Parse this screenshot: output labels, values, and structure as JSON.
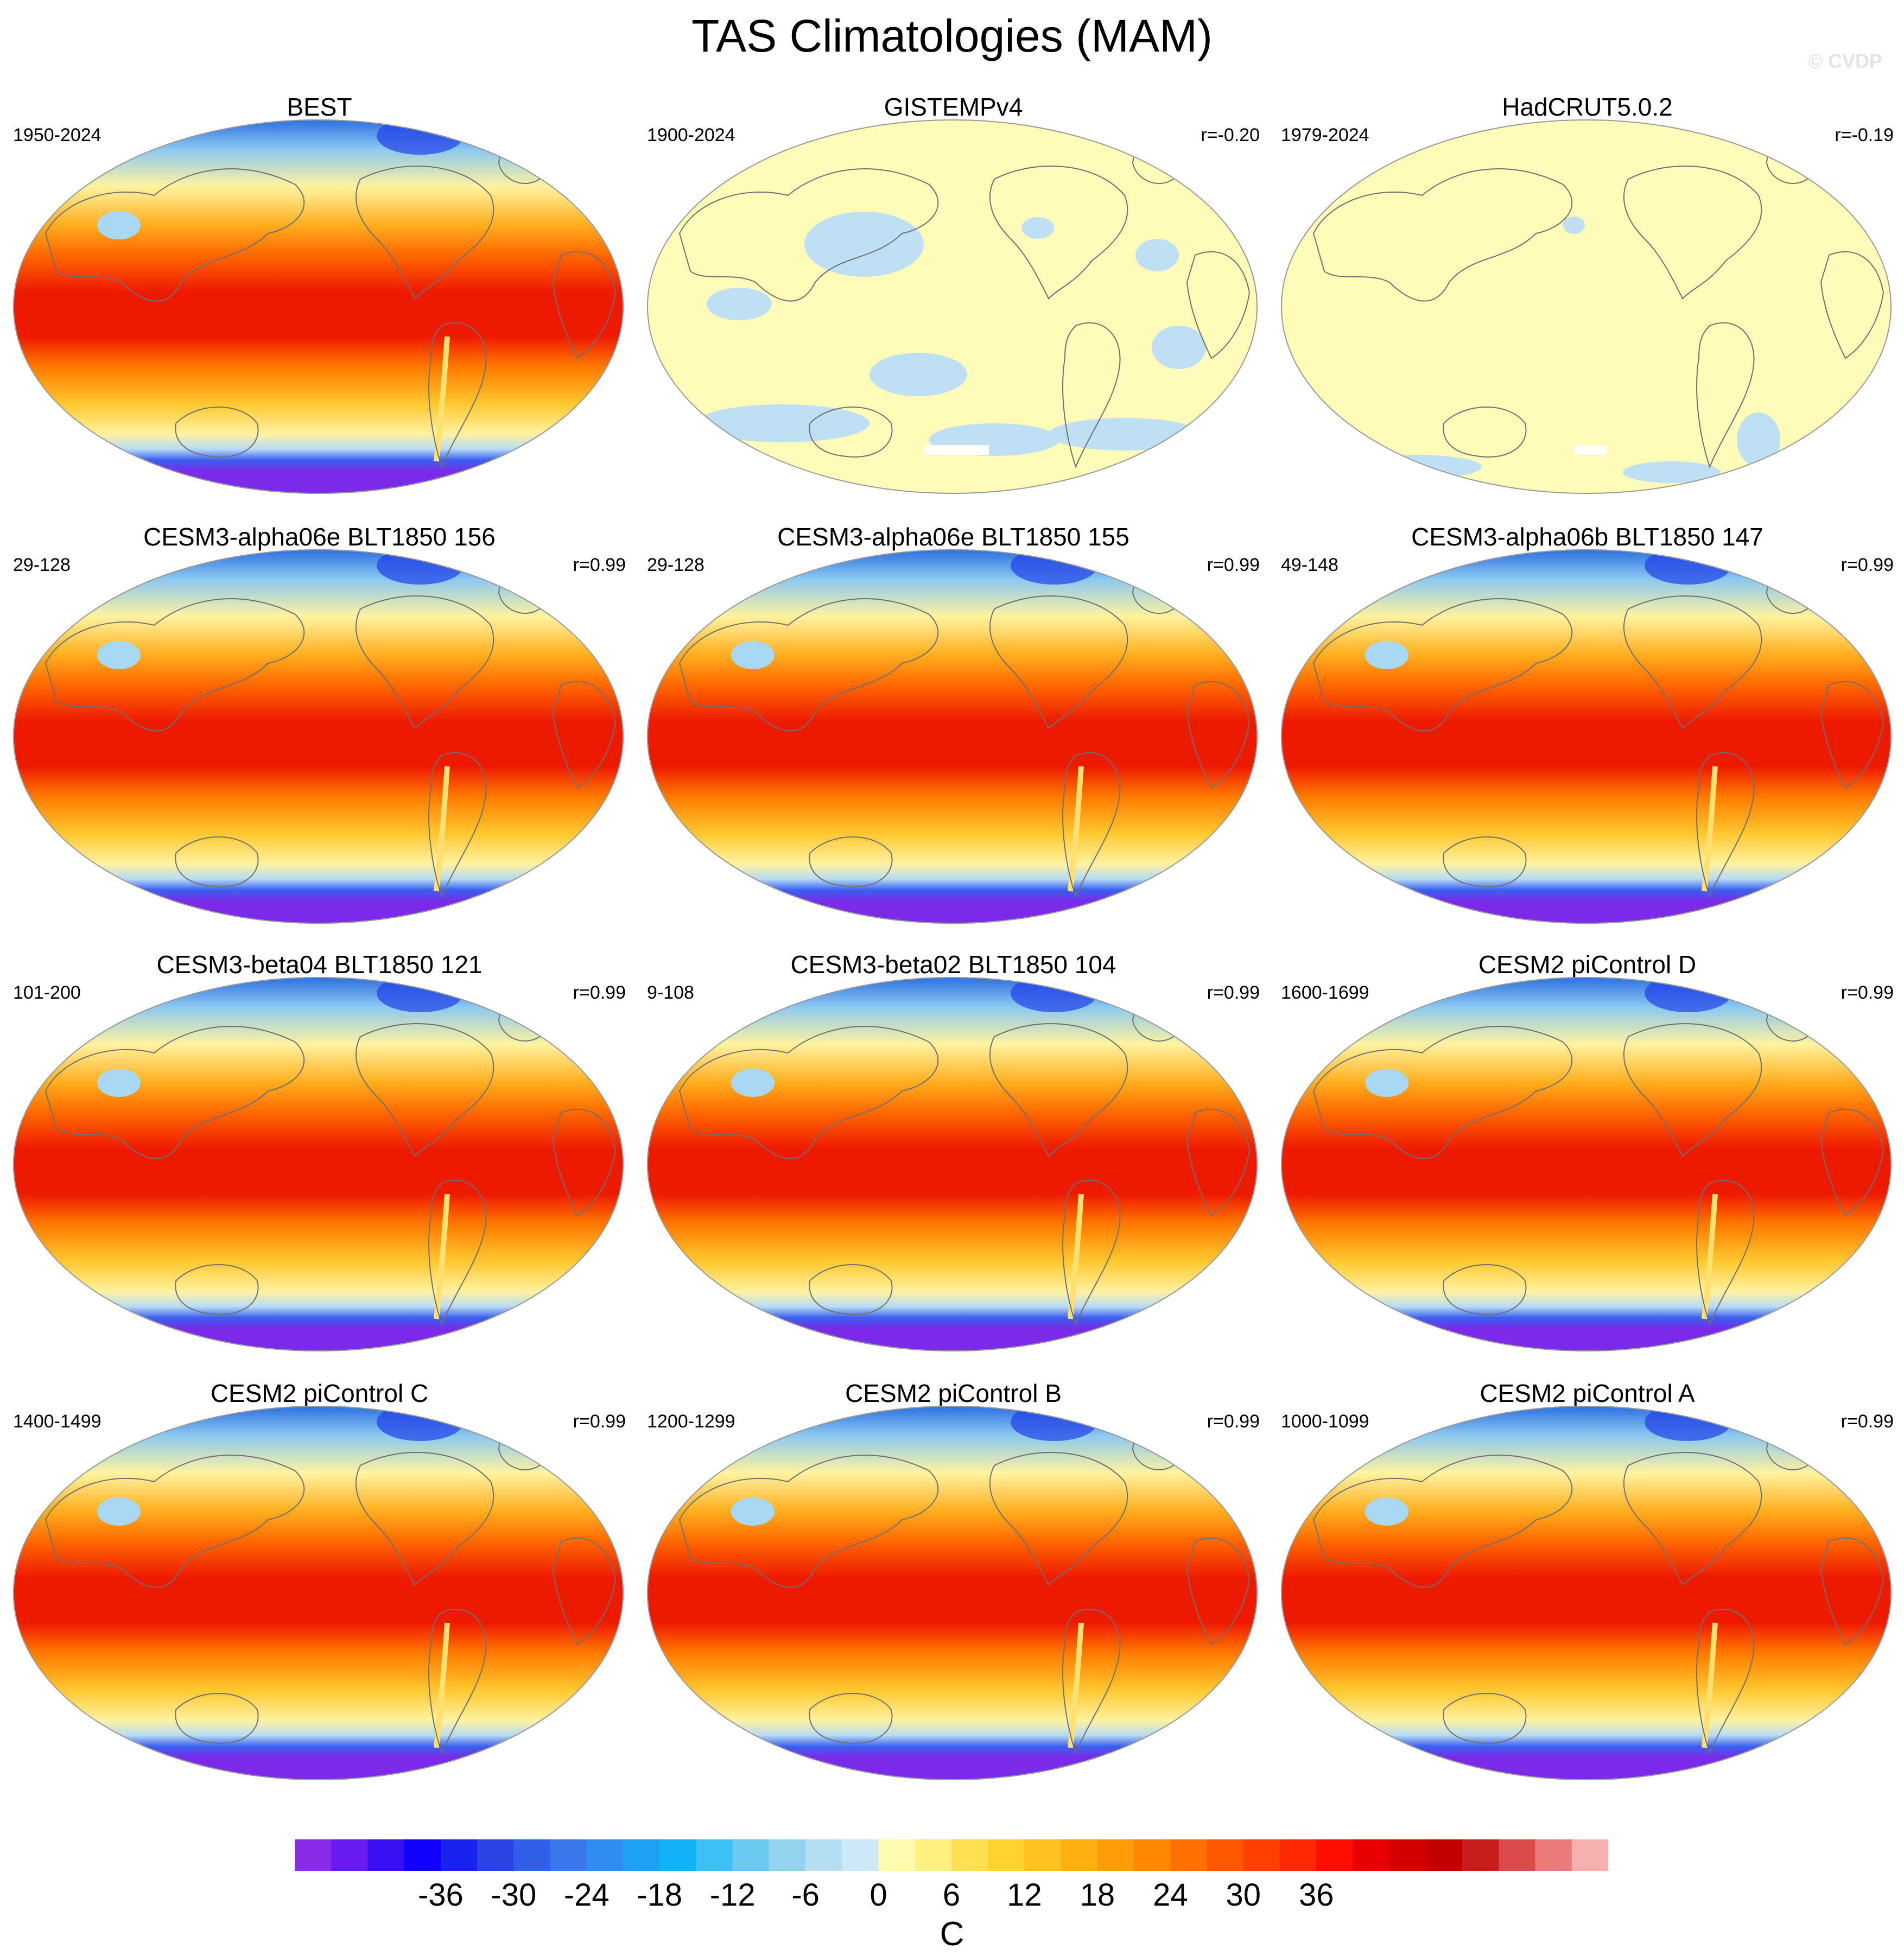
{
  "title": "TAS Climatologies (MAM)",
  "watermark": "© CVDP",
  "panels": [
    {
      "title": "BEST",
      "period": "1950-2024",
      "corr": "",
      "style": "temp"
    },
    {
      "title": "GISTEMPv4",
      "period": "1900-2024",
      "corr": "r=-0.20",
      "style": "anom"
    },
    {
      "title": "HadCRUT5.0.2",
      "period": "1979-2024",
      "corr": "r=-0.19",
      "style": "anom2"
    },
    {
      "title": "CESM3-alpha06e BLT1850 156",
      "period": "29-128",
      "corr": "r=0.99",
      "style": "temp"
    },
    {
      "title": "CESM3-alpha06e BLT1850 155",
      "period": "29-128",
      "corr": "r=0.99",
      "style": "temp"
    },
    {
      "title": "CESM3-alpha06b BLT1850 147",
      "period": "49-148",
      "corr": "r=0.99",
      "style": "temp"
    },
    {
      "title": "CESM3-beta04 BLT1850 121",
      "period": "101-200",
      "corr": "r=0.99",
      "style": "temp"
    },
    {
      "title": "CESM3-beta02 BLT1850 104",
      "period": "9-108",
      "corr": "r=0.99",
      "style": "temp"
    },
    {
      "title": "CESM2 piControl D",
      "period": "1600-1699",
      "corr": "r=0.99",
      "style": "temp"
    },
    {
      "title": "CESM2 piControl C",
      "period": "1400-1499",
      "corr": "r=0.99",
      "style": "temp"
    },
    {
      "title": "CESM2 piControl B",
      "period": "1200-1299",
      "corr": "r=0.99",
      "style": "temp"
    },
    {
      "title": "CESM2 piControl A",
      "period": "1000-1099",
      "corr": "r=0.99",
      "style": "temp"
    }
  ],
  "colorbar": {
    "colors": [
      "#8a2be8",
      "#6a1cf0",
      "#3a10f5",
      "#1200ff",
      "#1a22f0",
      "#2a44e6",
      "#3060e8",
      "#3a78ee",
      "#2f8cf0",
      "#1ea0f5",
      "#12b2f8",
      "#3cc0f5",
      "#6ccaf0",
      "#94d4ee",
      "#b4def2",
      "#cde8f6",
      "#fffbb0",
      "#fff080",
      "#ffe050",
      "#ffd230",
      "#ffc220",
      "#ffb010",
      "#ff9c08",
      "#ff8800",
      "#ff7000",
      "#ff5800",
      "#ff4000",
      "#ff2800",
      "#ff0f00",
      "#e80000",
      "#d40000",
      "#c20000",
      "#c81e1e",
      "#dc4a4a",
      "#ec7a7a",
      "#f7b0b0"
    ],
    "tick_labels": [
      "-36",
      "-30",
      "-24",
      "-18",
      "-12",
      "-6",
      "0",
      "6",
      "12",
      "18",
      "24",
      "30",
      "36"
    ],
    "unit": "C"
  }
}
